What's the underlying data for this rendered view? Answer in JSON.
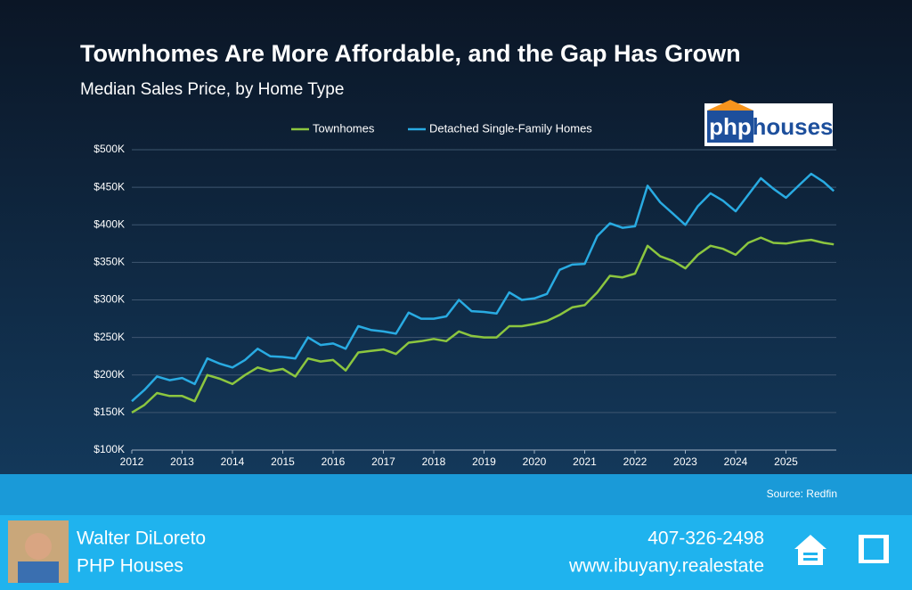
{
  "chart_data": {
    "type": "line",
    "title": "Townhomes Are More Affordable, and the Gap Has Grown",
    "subtitle": "Median Sales Price, by Home Type",
    "source": "Source: Redfin",
    "x": [
      2012,
      2012.25,
      2012.5,
      2012.75,
      2013,
      2013.25,
      2013.5,
      2013.75,
      2014,
      2014.25,
      2014.5,
      2014.75,
      2015,
      2015.25,
      2015.5,
      2015.75,
      2016,
      2016.25,
      2016.5,
      2016.75,
      2017,
      2017.25,
      2017.5,
      2017.75,
      2018,
      2018.25,
      2018.5,
      2018.75,
      2019,
      2019.25,
      2019.5,
      2019.75,
      2020,
      2020.25,
      2020.5,
      2020.75,
      2021,
      2021.25,
      2021.5,
      2021.75,
      2022,
      2022.25,
      2022.5,
      2022.75,
      2023,
      2023.25,
      2023.5,
      2023.75,
      2024,
      2024.25,
      2024.5,
      2024.75,
      2025,
      2025.25,
      2025.5,
      2025.75,
      2025.95
    ],
    "series": [
      {
        "name": "Townhomes",
        "color": "#8cc63f",
        "values": [
          150000,
          160000,
          176000,
          172000,
          172000,
          165000,
          200000,
          195000,
          188000,
          200000,
          210000,
          205000,
          208000,
          198000,
          222000,
          218000,
          220000,
          206000,
          230000,
          232000,
          234000,
          228000,
          243000,
          245000,
          248000,
          245000,
          258000,
          252000,
          250000,
          250000,
          265000,
          265000,
          268000,
          272000,
          280000,
          290000,
          293000,
          310000,
          332000,
          330000,
          335000,
          372000,
          358000,
          352000,
          342000,
          360000,
          372000,
          368000,
          360000,
          376000,
          383000,
          376000,
          375000,
          378000,
          380000,
          376000,
          374000
        ]
      },
      {
        "name": "Detached Single-Family Homes",
        "color": "#29abe2",
        "values": [
          165000,
          180000,
          198000,
          193000,
          196000,
          188000,
          222000,
          215000,
          210000,
          220000,
          235000,
          225000,
          224000,
          222000,
          250000,
          240000,
          242000,
          235000,
          265000,
          260000,
          258000,
          255000,
          283000,
          275000,
          275000,
          278000,
          300000,
          285000,
          284000,
          282000,
          310000,
          300000,
          302000,
          308000,
          340000,
          347000,
          348000,
          385000,
          402000,
          396000,
          398000,
          452000,
          430000,
          415000,
          400000,
          425000,
          442000,
          432000,
          418000,
          440000,
          462000,
          448000,
          436000,
          452000,
          468000,
          457000,
          445000
        ]
      }
    ],
    "xlim": [
      2012,
      2026
    ],
    "xticks": [
      2012,
      2013,
      2014,
      2015,
      2016,
      2017,
      2018,
      2019,
      2020,
      2021,
      2022,
      2023,
      2024,
      2025
    ],
    "ylim": [
      100000,
      500000
    ],
    "yticks": [
      {
        "value": 100000,
        "label": "$100K"
      },
      {
        "value": 150000,
        "label": "$150K"
      },
      {
        "value": 200000,
        "label": "$200K"
      },
      {
        "value": 250000,
        "label": "$250K"
      },
      {
        "value": 300000,
        "label": "$300K"
      },
      {
        "value": 350000,
        "label": "$350K"
      },
      {
        "value": 400000,
        "label": "$400K"
      },
      {
        "value": 450000,
        "label": "$450K"
      },
      {
        "value": 500000,
        "label": "$500K"
      }
    ],
    "grid": true
  },
  "logo": {
    "left": "php",
    "right": "houses"
  },
  "footer": {
    "name": "Walter DiLoreto",
    "company": "PHP Houses",
    "phone": "407-326-2498",
    "website": "www.ibuyany.realestate"
  }
}
